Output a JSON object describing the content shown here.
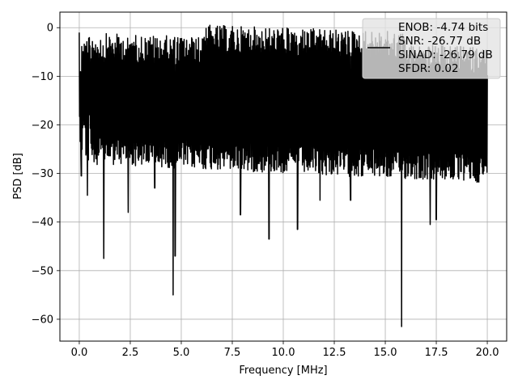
{
  "chart_data": {
    "type": "line",
    "title": "",
    "xlabel": "Frequency [MHz]",
    "ylabel": "PSD [dB]",
    "xlim": [
      -0.95,
      20.95
    ],
    "ylim": [
      -64.5,
      3.2
    ],
    "x_ticks": [
      0.0,
      2.5,
      5.0,
      7.5,
      10.0,
      12.5,
      15.0,
      17.5,
      20.0
    ],
    "x_tick_labels": [
      "0.0",
      "2.5",
      "5.0",
      "7.5",
      "10.0",
      "12.5",
      "15.0",
      "17.5",
      "20.0"
    ],
    "y_ticks": [
      0,
      -10,
      -20,
      -30,
      -40,
      -50,
      -60
    ],
    "y_tick_labels": [
      "0",
      "−10",
      "−20",
      "−30",
      "−40",
      "−50",
      "−60"
    ],
    "grid": true,
    "legend_position": "top-right",
    "line_color": "#000000",
    "series": [
      {
        "x_start": 0.0,
        "x_end": 20.0,
        "band_top_start": -1,
        "band_top_end": -4,
        "band_bottom_start": -22,
        "band_bottom_end": -26,
        "dips": [
          {
            "x": 0.1,
            "y": -30.5
          },
          {
            "x": 0.4,
            "y": -34.5
          },
          {
            "x": 1.2,
            "y": -47.5
          },
          {
            "x": 2.4,
            "y": -38
          },
          {
            "x": 3.7,
            "y": -33
          },
          {
            "x": 4.6,
            "y": -55
          },
          {
            "x": 4.7,
            "y": -47
          },
          {
            "x": 7.9,
            "y": -38.5
          },
          {
            "x": 9.3,
            "y": -43.5
          },
          {
            "x": 10.7,
            "y": -41.5
          },
          {
            "x": 11.8,
            "y": -35.5
          },
          {
            "x": 13.3,
            "y": -35.5
          },
          {
            "x": 15.8,
            "y": -61.5
          },
          {
            "x": 17.2,
            "y": -40.5
          },
          {
            "x": 17.5,
            "y": -39.5
          }
        ]
      }
    ],
    "legend": [
      "ENOB: -4.74 bits",
      "SNR: -26.77 dB",
      "SINAD: -26.79 dB",
      "SFDR: 0.02"
    ]
  }
}
